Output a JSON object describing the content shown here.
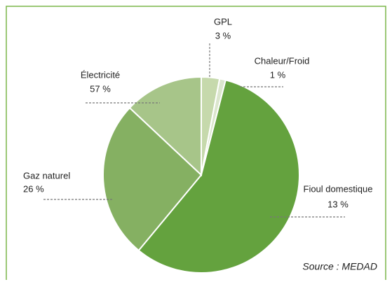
{
  "chart_data": {
    "type": "pie",
    "categories": [
      "GPL",
      "Chaleur/Froid",
      "Électricité",
      "Gaz naturel",
      "Fioul domestique"
    ],
    "values": [
      3,
      1,
      57,
      26,
      13
    ],
    "value_labels": [
      "3 %",
      "1 %",
      "57 %",
      "26 %",
      "13 %"
    ],
    "colors": [
      "#c6d9ac",
      "#dbe6cd",
      "#64a23e",
      "#85b062",
      "#a7c589"
    ],
    "annotation": "Source : MEDAD"
  }
}
